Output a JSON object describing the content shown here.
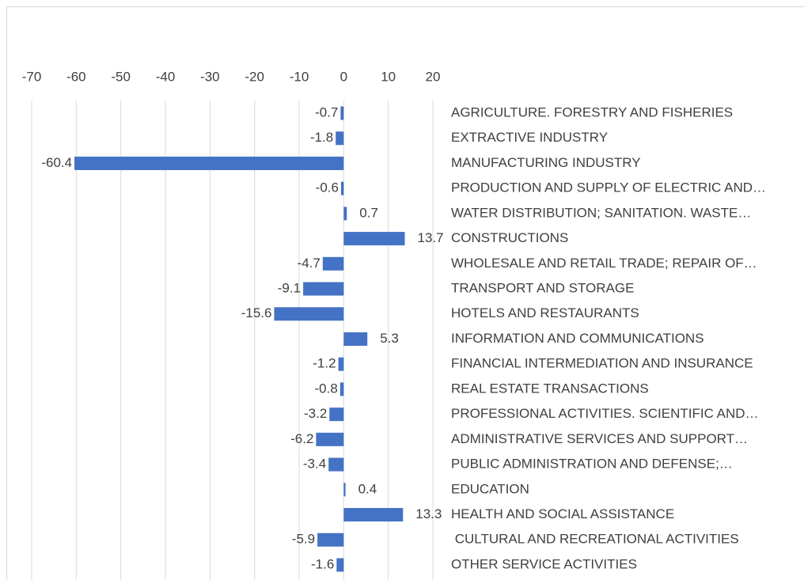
{
  "chart_data": {
    "type": "barh",
    "categories": [
      "AGRICULTURE. FORESTRY AND FISHERIES",
      "EXTRACTIVE INDUSTRY",
      "MANUFACTURING INDUSTRY",
      "PRODUCTION AND SUPPLY OF ELECTRIC AND…",
      "WATER DISTRIBUTION; SANITATION. WASTE…",
      "CONSTRUCTIONS",
      "WHOLESALE AND RETAIL TRADE; REPAIR OF…",
      "TRANSPORT AND STORAGE",
      "HOTELS AND RESTAURANTS",
      "INFORMATION AND COMMUNICATIONS",
      "FINANCIAL INTERMEDIATION AND INSURANCE",
      "REAL ESTATE TRANSACTIONS",
      "PROFESSIONAL ACTIVITIES. SCIENTIFIC AND…",
      "ADMINISTRATIVE SERVICES AND SUPPORT…",
      "PUBLIC ADMINISTRATION AND DEFENSE;…",
      "EDUCATION",
      "HEALTH AND SOCIAL ASSISTANCE",
      " CULTURAL AND RECREATIONAL ACTIVITIES",
      "OTHER SERVICE ACTIVITIES"
    ],
    "values": [
      -0.7,
      -1.8,
      -60.4,
      -0.6,
      0.7,
      13.7,
      -4.7,
      -9.1,
      -15.6,
      5.3,
      -1.2,
      -0.8,
      -3.2,
      -6.2,
      -3.4,
      0.4,
      13.3,
      -5.9,
      -1.6
    ],
    "color": "#4472c4",
    "xlim": [
      -70,
      20
    ],
    "xticks": [
      -70,
      -60,
      -50,
      -40,
      -30,
      -20,
      -10,
      0,
      10,
      20
    ],
    "grid": true
  }
}
